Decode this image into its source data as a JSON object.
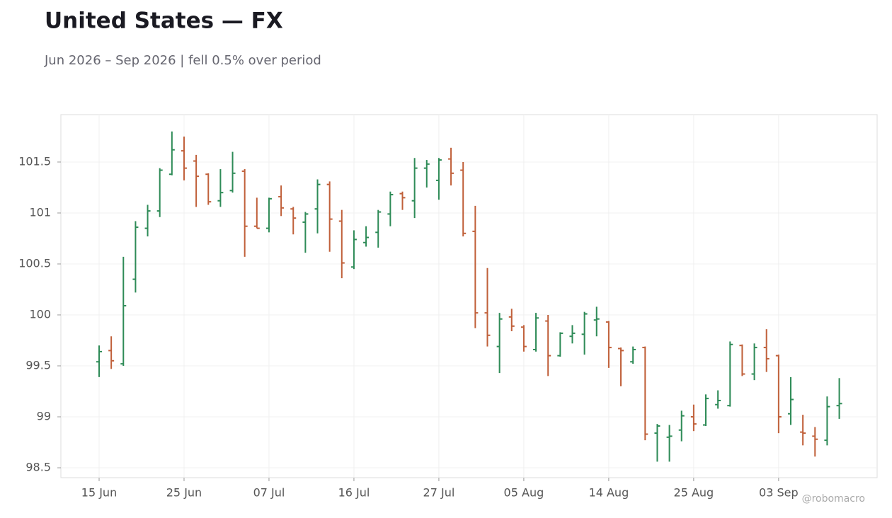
{
  "chart_data": {
    "type": "ohlc",
    "title": "United States — FX",
    "subtitle": "Jun 2026 – Sep 2026 | fell 0.5% over period",
    "credit": "@robomacro",
    "categories": [
      "15 Jun",
      null,
      null,
      null,
      null,
      null,
      null,
      "25 Jun",
      null,
      null,
      null,
      null,
      null,
      null,
      "07 Jul",
      null,
      null,
      null,
      null,
      null,
      null,
      "16 Jul",
      null,
      null,
      null,
      null,
      null,
      null,
      "27 Jul",
      null,
      null,
      null,
      null,
      null,
      null,
      "05 Aug",
      null,
      null,
      null,
      null,
      null,
      null,
      "14 Aug",
      null,
      null,
      null,
      null,
      null,
      null,
      "25 Aug",
      null,
      null,
      null,
      null,
      null,
      null,
      "03 Sep",
      null,
      null,
      null,
      null,
      null
    ],
    "open": [
      99.54,
      99.65,
      99.52,
      100.35,
      100.85,
      101.02,
      101.38,
      101.61,
      101.51,
      101.38,
      101.12,
      101.22,
      101.41,
      100.87,
      100.85,
      101.16,
      101.04,
      100.91,
      101.04,
      101.28,
      100.92,
      100.47,
      100.71,
      100.81,
      100.99,
      101.19,
      101.12,
      101.44,
      101.32,
      101.53,
      101.42,
      100.82,
      100.02,
      99.69,
      99.98,
      99.88,
      99.66,
      99.94,
      99.6,
      99.79,
      99.81,
      99.95,
      99.93,
      99.67,
      99.54,
      99.68,
      98.84,
      98.8,
      98.87,
      99.0,
      98.92,
      99.12,
      99.11,
      99.7,
      99.42,
      99.68,
      99.6,
      99.03,
      98.85,
      98.81,
      98.77,
      99.11
    ],
    "high": [
      99.7,
      99.79,
      100.57,
      100.92,
      101.08,
      101.44,
      101.8,
      101.75,
      101.57,
      101.39,
      101.43,
      101.6,
      101.43,
      101.15,
      101.15,
      101.27,
      101.06,
      101.01,
      101.33,
      101.31,
      101.03,
      100.83,
      100.87,
      101.03,
      101.21,
      101.21,
      101.54,
      101.52,
      101.54,
      101.64,
      101.5,
      101.07,
      100.46,
      100.02,
      100.06,
      99.9,
      100.02,
      100.0,
      99.83,
      99.9,
      100.03,
      100.08,
      99.94,
      99.68,
      99.69,
      99.69,
      98.93,
      98.92,
      99.06,
      99.12,
      99.22,
      99.26,
      99.74,
      99.71,
      99.72,
      99.86,
      99.61,
      99.39,
      99.02,
      98.9,
      99.2,
      99.38
    ],
    "low": [
      99.39,
      99.47,
      99.5,
      100.22,
      100.77,
      100.96,
      101.37,
      101.32,
      101.06,
      101.08,
      101.06,
      101.2,
      100.57,
      100.85,
      100.81,
      100.97,
      100.79,
      100.61,
      100.8,
      100.62,
      100.36,
      100.45,
      100.67,
      100.66,
      100.87,
      101.03,
      100.95,
      101.25,
      101.13,
      101.27,
      100.77,
      99.87,
      99.69,
      99.43,
      99.84,
      99.64,
      99.64,
      99.4,
      99.59,
      99.72,
      99.61,
      99.79,
      99.48,
      99.3,
      99.52,
      98.77,
      98.56,
      98.56,
      98.76,
      98.86,
      98.91,
      99.08,
      99.1,
      99.4,
      99.36,
      99.44,
      98.84,
      98.92,
      98.72,
      98.61,
      98.72,
      98.98
    ],
    "close": [
      99.64,
      99.55,
      100.09,
      100.86,
      101.02,
      101.42,
      101.62,
      101.44,
      101.36,
      101.11,
      101.2,
      101.39,
      100.87,
      100.85,
      101.14,
      101.05,
      100.95,
      100.99,
      101.28,
      100.94,
      100.51,
      100.74,
      100.76,
      101.01,
      101.18,
      101.15,
      101.44,
      101.48,
      101.52,
      101.39,
      100.8,
      100.02,
      99.8,
      99.96,
      99.89,
      99.69,
      99.97,
      99.6,
      99.82,
      99.82,
      100.01,
      99.96,
      99.68,
      99.65,
      99.66,
      98.83,
      98.91,
      98.81,
      99.01,
      98.93,
      99.18,
      99.16,
      99.71,
      99.42,
      99.68,
      99.57,
      99.0,
      99.17,
      98.84,
      98.78,
      99.1,
      99.13
    ],
    "up_color": "#2e8b57",
    "down_color": "#c0603a",
    "ylim": [
      98.403,
      101.965
    ],
    "yticks": [
      98.5,
      99,
      99.5,
      100,
      100.5,
      101,
      101.5
    ],
    "grid": true
  }
}
